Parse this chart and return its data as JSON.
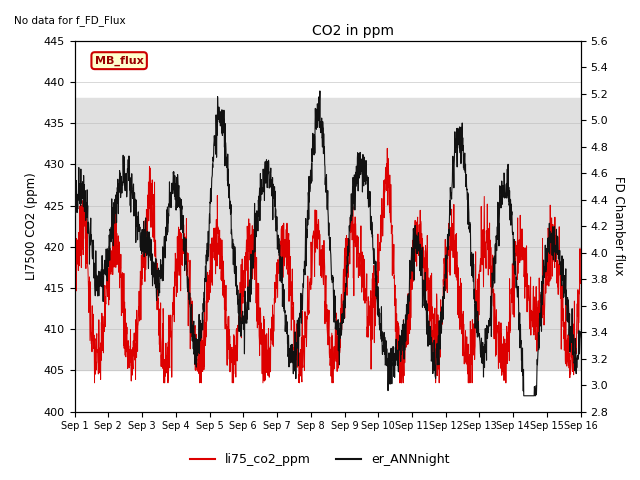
{
  "title": "CO2 in ppm",
  "ylabel_left": "LI7500 CO2 (ppm)",
  "ylabel_right": "FD Chamber flux",
  "ylim_left": [
    400,
    445
  ],
  "ylim_right": [
    2.8,
    5.6
  ],
  "yticks_left": [
    400,
    405,
    410,
    415,
    420,
    425,
    430,
    435,
    440,
    445
  ],
  "yticks_right": [
    2.8,
    3.0,
    3.2,
    3.4,
    3.6,
    3.8,
    4.0,
    4.2,
    4.4,
    4.6,
    4.8,
    5.0,
    5.2,
    5.4,
    5.6
  ],
  "xtick_labels": [
    "Sep 1",
    "Sep 2",
    "Sep 3",
    "Sep 4",
    "Sep 5",
    "Sep 6",
    "Sep 7",
    "Sep 8",
    "Sep 9",
    "Sep 10",
    "Sep 11",
    "Sep 12",
    "Sep 13",
    "Sep 14",
    "Sep 15",
    "Sep 16"
  ],
  "line1_color": "#dd0000",
  "line2_color": "#111111",
  "line1_label": "li75_co2_ppm",
  "line2_label": "er_ANNnight",
  "no_data_text": "No data for f_FD_Flux",
  "mb_flux_text": "MB_flux",
  "mb_flux_bg": "#ffffcc",
  "mb_flux_border": "#cc0000",
  "shaded_band_lo": 405,
  "shaded_band_hi": 438,
  "shaded_band_color": "#e0e0e0",
  "background_color": "#ffffff",
  "n_points": 2000
}
